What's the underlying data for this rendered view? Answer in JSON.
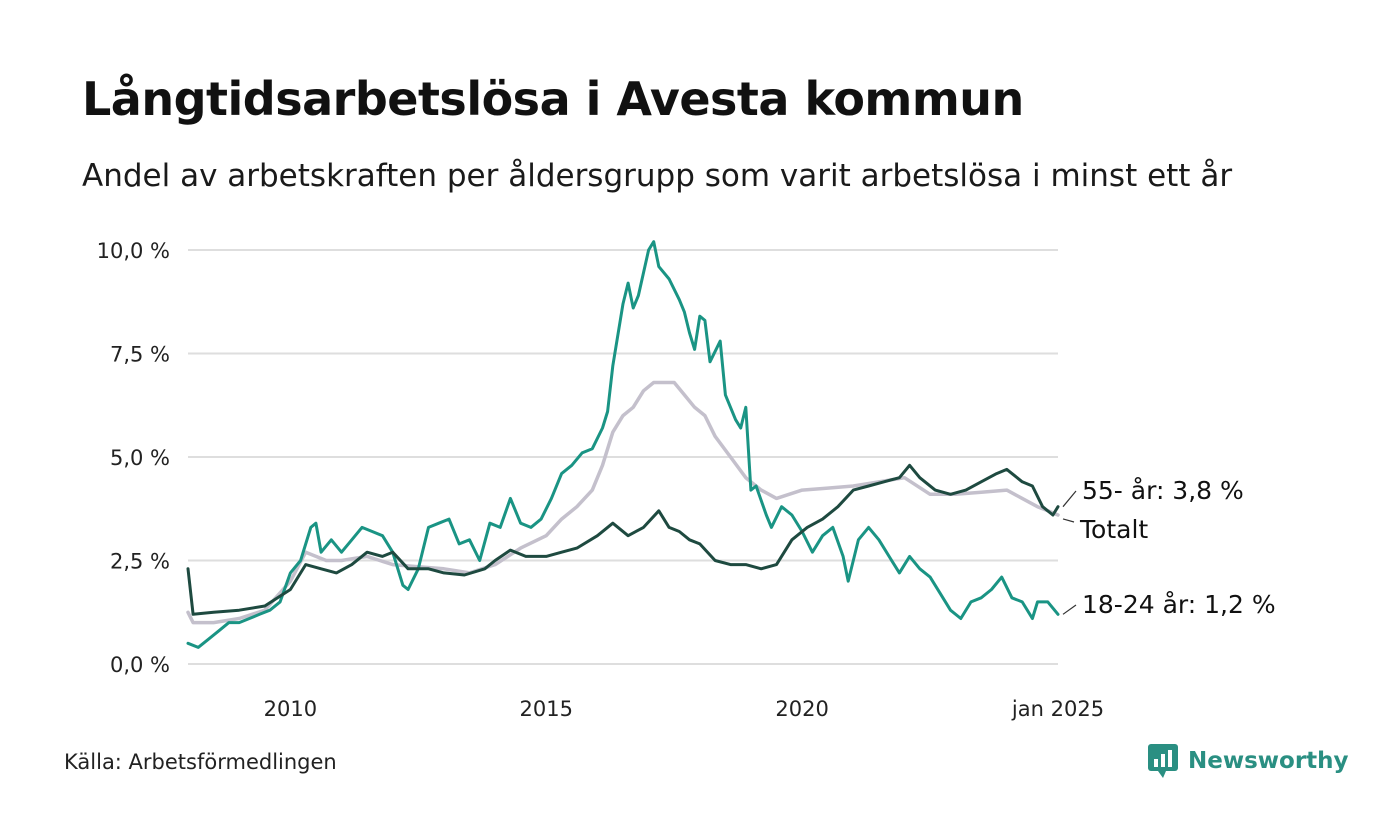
{
  "header": {
    "title": "Långtidsarbetslösa i Avesta kommun",
    "subtitle": "Andel av arbetskraften per åldersgrupp som varit arbetslösa i minst ett år"
  },
  "footer": {
    "source": "Källa: Arbetsförmedlingen",
    "brand": "Newsworthy"
  },
  "colors": {
    "youth": "#1a9484",
    "older": "#1e4a40",
    "total": "#c4c0cc",
    "grid": "#dedede",
    "brand": "#2a8f82"
  },
  "chart_data": {
    "type": "line",
    "title": "Långtidsarbetslösa i Avesta kommun",
    "subtitle": "Andel av arbetskraften per åldersgrupp som varit arbetslösa i minst ett år",
    "y_ticks": [
      "0,0 %",
      "2,5 %",
      "5,0 %",
      "7,5 %",
      "10,0 %"
    ],
    "y_tick_values": [
      0,
      2.5,
      5,
      7.5,
      10
    ],
    "ylim": [
      0,
      10
    ],
    "x_ticks": [
      "2010",
      "2015",
      "2020",
      "jan 2025"
    ],
    "x_tick_values": [
      2010,
      2015,
      2020,
      2025
    ],
    "xlim": [
      2008.0,
      2025.0
    ],
    "grid": true,
    "legend": "direct labels at line ends (right)",
    "series": [
      {
        "name": "Totalt",
        "end_label": "Totalt",
        "color": "#c4c0cc",
        "points": [
          [
            2008.0,
            1.25
          ],
          [
            2008.1,
            1.0
          ],
          [
            2008.5,
            1.0
          ],
          [
            2009.0,
            1.1
          ],
          [
            2009.5,
            1.3
          ],
          [
            2010.0,
            2.0
          ],
          [
            2010.3,
            2.7
          ],
          [
            2010.7,
            2.5
          ],
          [
            2011.0,
            2.5
          ],
          [
            2011.5,
            2.6
          ],
          [
            2012.0,
            2.4
          ],
          [
            2012.5,
            2.35
          ],
          [
            2013.0,
            2.3
          ],
          [
            2013.5,
            2.2
          ],
          [
            2014.0,
            2.4
          ],
          [
            2014.5,
            2.8
          ],
          [
            2015.0,
            3.1
          ],
          [
            2015.3,
            3.5
          ],
          [
            2015.6,
            3.8
          ],
          [
            2015.9,
            4.2
          ],
          [
            2016.1,
            4.8
          ],
          [
            2016.3,
            5.6
          ],
          [
            2016.5,
            6.0
          ],
          [
            2016.7,
            6.2
          ],
          [
            2016.9,
            6.6
          ],
          [
            2017.1,
            6.8
          ],
          [
            2017.5,
            6.8
          ],
          [
            2017.7,
            6.5
          ],
          [
            2017.9,
            6.2
          ],
          [
            2018.1,
            6.0
          ],
          [
            2018.3,
            5.5
          ],
          [
            2018.6,
            5.0
          ],
          [
            2018.9,
            4.5
          ],
          [
            2019.2,
            4.2
          ],
          [
            2019.5,
            4.0
          ],
          [
            2020.0,
            4.2
          ],
          [
            2020.5,
            4.25
          ],
          [
            2021.0,
            4.3
          ],
          [
            2021.5,
            4.4
          ],
          [
            2022.0,
            4.5
          ],
          [
            2022.5,
            4.1
          ],
          [
            2023.0,
            4.1
          ],
          [
            2023.5,
            4.15
          ],
          [
            2024.0,
            4.2
          ],
          [
            2024.3,
            4.0
          ],
          [
            2024.6,
            3.8
          ],
          [
            2024.8,
            3.7
          ],
          [
            2025.0,
            3.6
          ]
        ]
      },
      {
        "name": "18-24 år",
        "end_label": "18-24 år: 1,2 %",
        "color": "#1a9484",
        "points": [
          [
            2008.0,
            0.5
          ],
          [
            2008.2,
            0.4
          ],
          [
            2008.4,
            0.6
          ],
          [
            2008.6,
            0.8
          ],
          [
            2008.8,
            1.0
          ],
          [
            2009.0,
            1.0
          ],
          [
            2009.2,
            1.1
          ],
          [
            2009.4,
            1.2
          ],
          [
            2009.6,
            1.3
          ],
          [
            2009.8,
            1.5
          ],
          [
            2010.0,
            2.2
          ],
          [
            2010.2,
            2.5
          ],
          [
            2010.4,
            3.3
          ],
          [
            2010.5,
            3.4
          ],
          [
            2010.6,
            2.7
          ],
          [
            2010.8,
            3.0
          ],
          [
            2011.0,
            2.7
          ],
          [
            2011.2,
            3.0
          ],
          [
            2011.4,
            3.3
          ],
          [
            2011.6,
            3.2
          ],
          [
            2011.8,
            3.1
          ],
          [
            2012.0,
            2.7
          ],
          [
            2012.2,
            1.9
          ],
          [
            2012.3,
            1.8
          ],
          [
            2012.5,
            2.3
          ],
          [
            2012.7,
            3.3
          ],
          [
            2012.9,
            3.4
          ],
          [
            2013.1,
            3.5
          ],
          [
            2013.3,
            2.9
          ],
          [
            2013.5,
            3.0
          ],
          [
            2013.7,
            2.5
          ],
          [
            2013.9,
            3.4
          ],
          [
            2014.1,
            3.3
          ],
          [
            2014.3,
            4.0
          ],
          [
            2014.5,
            3.4
          ],
          [
            2014.7,
            3.3
          ],
          [
            2014.9,
            3.5
          ],
          [
            2015.1,
            4.0
          ],
          [
            2015.3,
            4.6
          ],
          [
            2015.5,
            4.8
          ],
          [
            2015.7,
            5.1
          ],
          [
            2015.9,
            5.2
          ],
          [
            2016.1,
            5.7
          ],
          [
            2016.2,
            6.1
          ],
          [
            2016.3,
            7.2
          ],
          [
            2016.5,
            8.7
          ],
          [
            2016.6,
            9.2
          ],
          [
            2016.7,
            8.6
          ],
          [
            2016.8,
            8.9
          ],
          [
            2017.0,
            10.0
          ],
          [
            2017.1,
            10.2
          ],
          [
            2017.2,
            9.6
          ],
          [
            2017.4,
            9.3
          ],
          [
            2017.6,
            8.8
          ],
          [
            2017.7,
            8.5
          ],
          [
            2017.8,
            8.0
          ],
          [
            2017.9,
            7.6
          ],
          [
            2018.0,
            8.4
          ],
          [
            2018.1,
            8.3
          ],
          [
            2018.2,
            7.3
          ],
          [
            2018.4,
            7.8
          ],
          [
            2018.5,
            6.5
          ],
          [
            2018.7,
            5.9
          ],
          [
            2018.8,
            5.7
          ],
          [
            2018.9,
            6.2
          ],
          [
            2019.0,
            4.2
          ],
          [
            2019.1,
            4.3
          ],
          [
            2019.3,
            3.6
          ],
          [
            2019.4,
            3.3
          ],
          [
            2019.6,
            3.8
          ],
          [
            2019.8,
            3.6
          ],
          [
            2020.0,
            3.2
          ],
          [
            2020.2,
            2.7
          ],
          [
            2020.4,
            3.1
          ],
          [
            2020.6,
            3.3
          ],
          [
            2020.8,
            2.6
          ],
          [
            2020.9,
            2.0
          ],
          [
            2021.1,
            3.0
          ],
          [
            2021.3,
            3.3
          ],
          [
            2021.5,
            3.0
          ],
          [
            2021.7,
            2.6
          ],
          [
            2021.9,
            2.2
          ],
          [
            2022.1,
            2.6
          ],
          [
            2022.3,
            2.3
          ],
          [
            2022.5,
            2.1
          ],
          [
            2022.7,
            1.7
          ],
          [
            2022.9,
            1.3
          ],
          [
            2023.1,
            1.1
          ],
          [
            2023.3,
            1.5
          ],
          [
            2023.5,
            1.6
          ],
          [
            2023.7,
            1.8
          ],
          [
            2023.9,
            2.1
          ],
          [
            2024.1,
            1.6
          ],
          [
            2024.3,
            1.5
          ],
          [
            2024.5,
            1.1
          ],
          [
            2024.6,
            1.5
          ],
          [
            2024.8,
            1.5
          ],
          [
            2025.0,
            1.2
          ]
        ]
      },
      {
        "name": "55- år",
        "end_label": "55- år: 3,8 %",
        "color": "#1e4a40",
        "points": [
          [
            2008.0,
            2.3
          ],
          [
            2008.1,
            1.2
          ],
          [
            2008.5,
            1.25
          ],
          [
            2009.0,
            1.3
          ],
          [
            2009.5,
            1.4
          ],
          [
            2010.0,
            1.8
          ],
          [
            2010.3,
            2.4
          ],
          [
            2010.6,
            2.3
          ],
          [
            2010.9,
            2.2
          ],
          [
            2011.2,
            2.4
          ],
          [
            2011.5,
            2.7
          ],
          [
            2011.8,
            2.6
          ],
          [
            2012.0,
            2.7
          ],
          [
            2012.3,
            2.3
          ],
          [
            2012.7,
            2.3
          ],
          [
            2013.0,
            2.2
          ],
          [
            2013.4,
            2.15
          ],
          [
            2013.8,
            2.3
          ],
          [
            2014.0,
            2.5
          ],
          [
            2014.3,
            2.75
          ],
          [
            2014.6,
            2.6
          ],
          [
            2015.0,
            2.6
          ],
          [
            2015.3,
            2.7
          ],
          [
            2015.6,
            2.8
          ],
          [
            2016.0,
            3.1
          ],
          [
            2016.3,
            3.4
          ],
          [
            2016.6,
            3.1
          ],
          [
            2016.9,
            3.3
          ],
          [
            2017.2,
            3.7
          ],
          [
            2017.4,
            3.3
          ],
          [
            2017.6,
            3.2
          ],
          [
            2017.8,
            3.0
          ],
          [
            2018.0,
            2.9
          ],
          [
            2018.3,
            2.5
          ],
          [
            2018.6,
            2.4
          ],
          [
            2018.9,
            2.4
          ],
          [
            2019.2,
            2.3
          ],
          [
            2019.5,
            2.4
          ],
          [
            2019.8,
            3.0
          ],
          [
            2020.1,
            3.3
          ],
          [
            2020.4,
            3.5
          ],
          [
            2020.7,
            3.8
          ],
          [
            2021.0,
            4.2
          ],
          [
            2021.3,
            4.3
          ],
          [
            2021.6,
            4.4
          ],
          [
            2021.9,
            4.5
          ],
          [
            2022.1,
            4.8
          ],
          [
            2022.3,
            4.5
          ],
          [
            2022.6,
            4.2
          ],
          [
            2022.9,
            4.1
          ],
          [
            2023.2,
            4.2
          ],
          [
            2023.5,
            4.4
          ],
          [
            2023.8,
            4.6
          ],
          [
            2024.0,
            4.7
          ],
          [
            2024.3,
            4.4
          ],
          [
            2024.5,
            4.3
          ],
          [
            2024.7,
            3.8
          ],
          [
            2024.9,
            3.6
          ],
          [
            2025.0,
            3.8
          ]
        ]
      }
    ]
  }
}
